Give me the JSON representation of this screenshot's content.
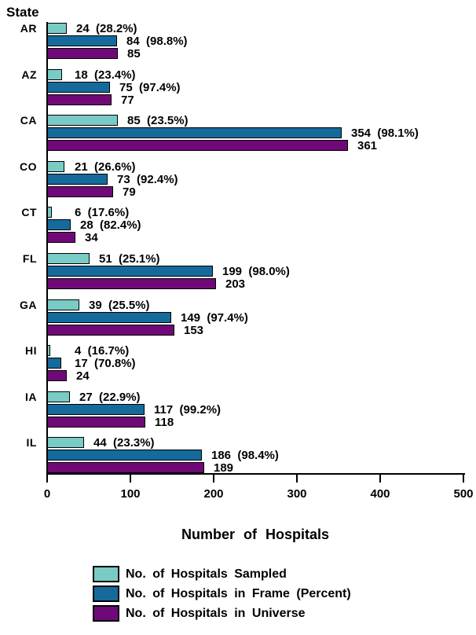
{
  "chart_data": {
    "type": "bar",
    "orientation": "horizontal",
    "title": "State",
    "xlabel": "Number of Hospitals",
    "ylabel": "State",
    "xlim": [
      0,
      500
    ],
    "x_ticks": [
      0,
      100,
      200,
      300,
      400,
      500
    ],
    "grid": false,
    "legend_position": "bottom",
    "categories": [
      "AR",
      "AZ",
      "CA",
      "CO",
      "CT",
      "FL",
      "GA",
      "HI",
      "IA",
      "IL"
    ],
    "series": [
      {
        "key": "sampled",
        "name": "No. of Hospitals Sampled",
        "color": "#79cbc6",
        "values": [
          24,
          18,
          85,
          21,
          6,
          51,
          39,
          4,
          27,
          44
        ],
        "percents": [
          "28.2%",
          "23.4%",
          "23.5%",
          "26.6%",
          "17.6%",
          "25.1%",
          "25.5%",
          "16.7%",
          "22.9%",
          "23.3%"
        ]
      },
      {
        "key": "frame",
        "name": "No. of Hospitals in Frame (Percent)",
        "color": "#156a9b",
        "values": [
          84,
          75,
          354,
          73,
          28,
          199,
          149,
          17,
          117,
          186
        ],
        "percents": [
          "98.8%",
          "97.4%",
          "98.1%",
          "92.4%",
          "82.4%",
          "98.0%",
          "97.4%",
          "70.8%",
          "99.2%",
          "98.4%"
        ]
      },
      {
        "key": "universe",
        "name": "No. of Hospitals in Universe",
        "color": "#700978",
        "values": [
          85,
          77,
          361,
          79,
          34,
          203,
          153,
          24,
          118,
          189
        ],
        "percents": null
      }
    ]
  }
}
